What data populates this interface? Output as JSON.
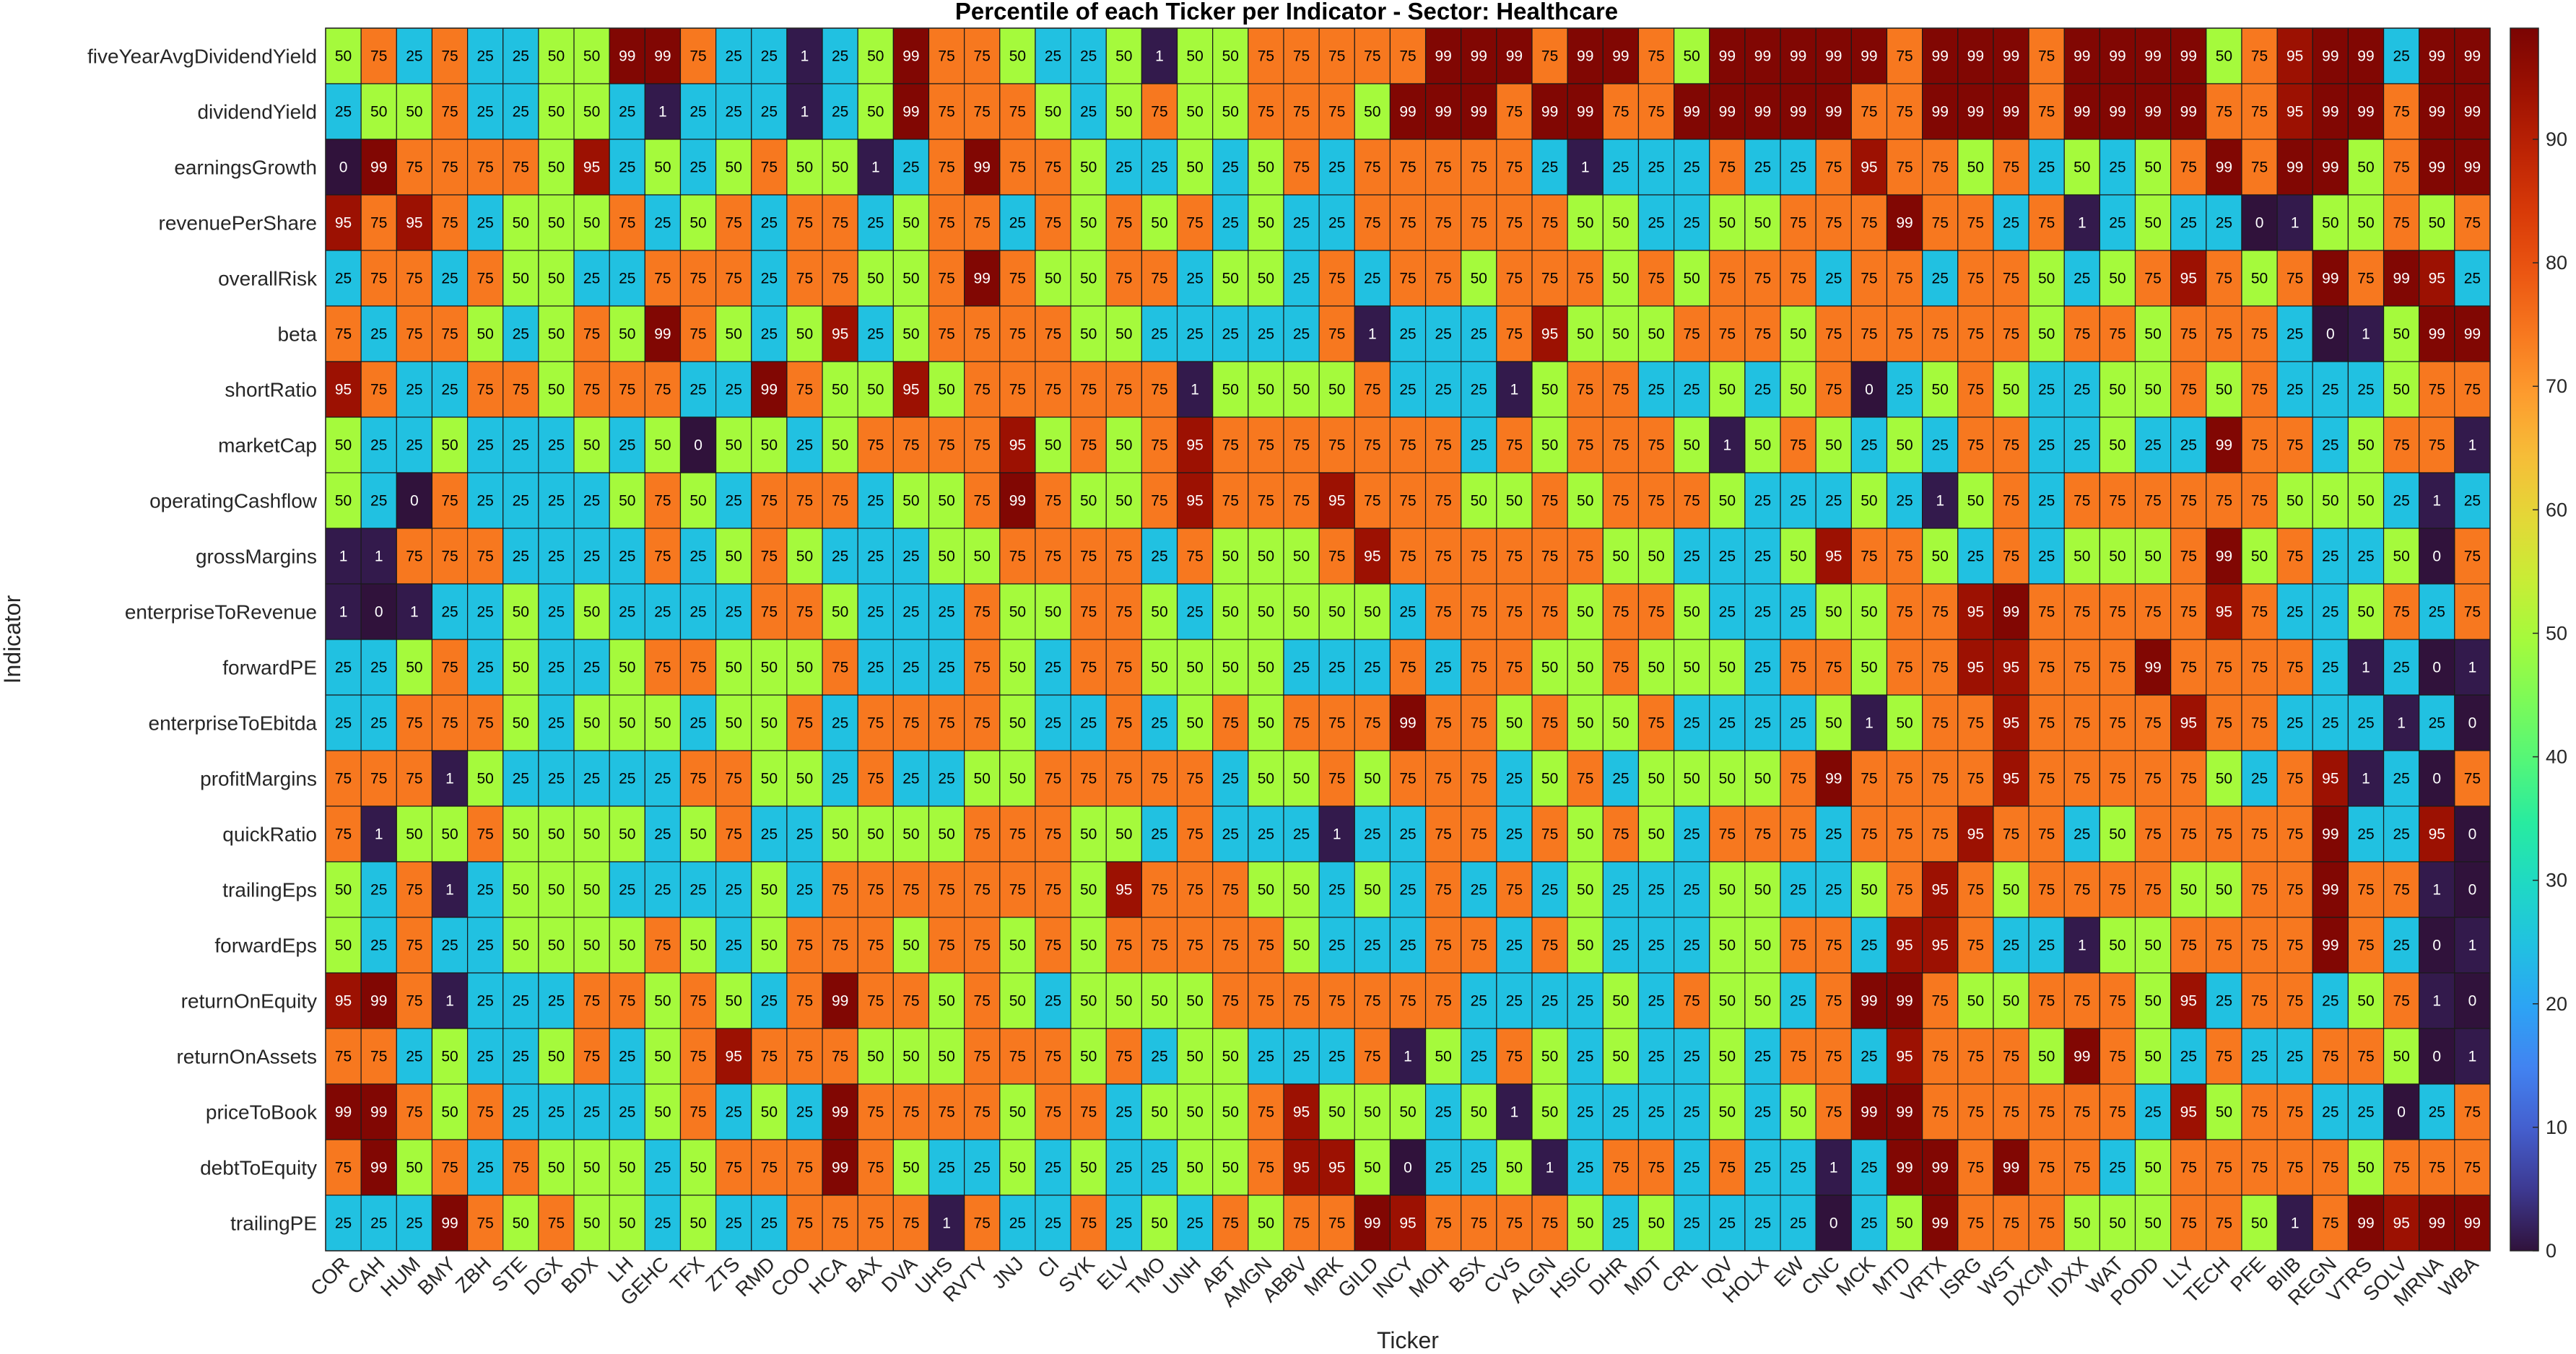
{
  "chart_data": {
    "type": "heatmap",
    "title": "Percentile of each Ticker per Indicator - Sector: Healthcare",
    "xlabel": "Ticker",
    "ylabel": "Indicator",
    "colormap": "turbo",
    "colorbar": {
      "range": [
        0,
        100
      ],
      "ticks": [
        0,
        10,
        20,
        30,
        40,
        50,
        60,
        70,
        80,
        90
      ]
    },
    "x": [
      "COR",
      "CAH",
      "HUM",
      "BMY",
      "ZBH",
      "STE",
      "DGX",
      "BDX",
      "LH",
      "GEHC",
      "TFX",
      "ZTS",
      "RMD",
      "COO",
      "HCA",
      "BAX",
      "DVA",
      "UHS",
      "RVTY",
      "JNJ",
      "CI",
      "SYK",
      "ELV",
      "TMO",
      "UNH",
      "ABT",
      "AMGN",
      "ABBV",
      "MRK",
      "GILD",
      "INCY",
      "MOH",
      "BSX",
      "CVS",
      "ALGN",
      "HSIC",
      "DHR",
      "MDT",
      "CRL",
      "IQV",
      "HOLX",
      "EW",
      "CNC",
      "MCK",
      "MTD",
      "VRTX",
      "ISRG",
      "WST",
      "DXCM",
      "IDXX",
      "WAT",
      "PODD",
      "LLY",
      "TECH",
      "PFE",
      "BIIB",
      "REGN",
      "VTRS",
      "SOLV",
      "MRNA",
      "WBA"
    ],
    "y": [
      "fiveYearAvgDividendYield",
      "dividendYield",
      "earningsGrowth",
      "revenuePerShare",
      "overallRisk",
      "beta",
      "shortRatio",
      "marketCap",
      "operatingCashflow",
      "grossMargins",
      "enterpriseToRevenue",
      "forwardPE",
      "enterpriseToEbitda",
      "profitMargins",
      "quickRatio",
      "trailingEps",
      "forwardEps",
      "returnOnEquity",
      "returnOnAssets",
      "priceToBook",
      "debtToEquity",
      "trailingPE"
    ],
    "values": [
      [
        50,
        75,
        25,
        75,
        25,
        25,
        50,
        50,
        99,
        99,
        75,
        25,
        25,
        1,
        25,
        50,
        99,
        75,
        75,
        50,
        25,
        25,
        50,
        1,
        50,
        50,
        75,
        75,
        75,
        75,
        75,
        99,
        99,
        99,
        75,
        99,
        99,
        75,
        50,
        99,
        99,
        99,
        99,
        99,
        75,
        99,
        99,
        99,
        75,
        99,
        99,
        99,
        99,
        50,
        75,
        95,
        99,
        99,
        25,
        99,
        99
      ],
      [
        25,
        50,
        50,
        75,
        25,
        25,
        50,
        50,
        25,
        1,
        25,
        25,
        25,
        1,
        25,
        50,
        99,
        75,
        75,
        75,
        50,
        25,
        50,
        75,
        50,
        50,
        75,
        75,
        75,
        50,
        99,
        99,
        99,
        75,
        99,
        99,
        75,
        75,
        99,
        99,
        99,
        99,
        99,
        75,
        75,
        99,
        99,
        99,
        75,
        99,
        99,
        99,
        99,
        75,
        75,
        95,
        99,
        99,
        75,
        99,
        99
      ],
      [
        0,
        99,
        75,
        75,
        75,
        75,
        50,
        95,
        25,
        50,
        25,
        50,
        75,
        50,
        50,
        1,
        25,
        75,
        99,
        75,
        75,
        50,
        25,
        25,
        50,
        25,
        50,
        75,
        25,
        75,
        75,
        75,
        75,
        75,
        25,
        1,
        25,
        25,
        25,
        75,
        25,
        25,
        75,
        95,
        75,
        75,
        50,
        75,
        25,
        50,
        25,
        50,
        75,
        99,
        75,
        99,
        99,
        50,
        75,
        99,
        99
      ],
      [
        95,
        75,
        95,
        75,
        25,
        50,
        50,
        50,
        75,
        25,
        50,
        75,
        25,
        75,
        75,
        25,
        50,
        75,
        75,
        25,
        75,
        50,
        75,
        50,
        75,
        25,
        50,
        25,
        25,
        75,
        75,
        75,
        75,
        75,
        75,
        50,
        50,
        25,
        25,
        50,
        50,
        75,
        75,
        75,
        99,
        75,
        75,
        25,
        75,
        1,
        25,
        50,
        25,
        25,
        0,
        1,
        50,
        50,
        75,
        50,
        75
      ],
      [
        25,
        75,
        75,
        25,
        75,
        50,
        50,
        25,
        25,
        75,
        75,
        75,
        25,
        75,
        75,
        50,
        50,
        75,
        99,
        75,
        50,
        50,
        75,
        75,
        25,
        50,
        50,
        25,
        75,
        25,
        75,
        75,
        50,
        75,
        75,
        75,
        50,
        75,
        50,
        75,
        75,
        75,
        25,
        75,
        75,
        25,
        75,
        75,
        50,
        25,
        50,
        75,
        95,
        75,
        50,
        75,
        99,
        75,
        99,
        95,
        25
      ],
      [
        75,
        25,
        75,
        75,
        50,
        25,
        50,
        75,
        50,
        99,
        75,
        50,
        25,
        50,
        95,
        25,
        50,
        75,
        75,
        75,
        75,
        50,
        50,
        25,
        25,
        25,
        25,
        25,
        75,
        1,
        25,
        25,
        25,
        75,
        95,
        50,
        50,
        50,
        75,
        75,
        75,
        50,
        75,
        75,
        75,
        75,
        75,
        75,
        50,
        75,
        75,
        50,
        75,
        75,
        75,
        25,
        0,
        1,
        50,
        99,
        99
      ],
      [
        95,
        75,
        25,
        25,
        75,
        75,
        50,
        75,
        75,
        75,
        25,
        25,
        99,
        75,
        50,
        50,
        95,
        50,
        75,
        75,
        75,
        75,
        75,
        75,
        1,
        50,
        50,
        50,
        50,
        75,
        25,
        25,
        25,
        1,
        50,
        75,
        75,
        25,
        25,
        50,
        25,
        50,
        75,
        0,
        25,
        50,
        75,
        50,
        25,
        25,
        50,
        50,
        75,
        50,
        75,
        25,
        25,
        25,
        50,
        75,
        75
      ],
      [
        50,
        25,
        25,
        50,
        25,
        25,
        25,
        50,
        25,
        50,
        0,
        50,
        50,
        25,
        50,
        75,
        75,
        75,
        75,
        95,
        50,
        75,
        50,
        75,
        95,
        75,
        75,
        75,
        75,
        75,
        75,
        75,
        25,
        75,
        50,
        75,
        75,
        75,
        50,
        1,
        50,
        75,
        50,
        25,
        50,
        25,
        75,
        75,
        25,
        25,
        50,
        25,
        25,
        99,
        75,
        75,
        25,
        50,
        75,
        75,
        1
      ],
      [
        50,
        25,
        0,
        75,
        25,
        25,
        25,
        25,
        50,
        75,
        50,
        25,
        75,
        75,
        75,
        25,
        50,
        50,
        75,
        99,
        75,
        50,
        50,
        75,
        95,
        75,
        75,
        75,
        95,
        75,
        75,
        75,
        50,
        50,
        75,
        50,
        75,
        75,
        75,
        50,
        25,
        25,
        25,
        50,
        25,
        1,
        50,
        75,
        25,
        75,
        75,
        75,
        75,
        75,
        75,
        50,
        50,
        50,
        25,
        1,
        25
      ],
      [
        1,
        1,
        75,
        75,
        75,
        25,
        25,
        25,
        25,
        75,
        25,
        50,
        75,
        50,
        25,
        25,
        25,
        50,
        50,
        75,
        75,
        75,
        75,
        25,
        75,
        50,
        50,
        50,
        75,
        95,
        75,
        75,
        75,
        75,
        75,
        75,
        50,
        50,
        25,
        25,
        25,
        50,
        95,
        75,
        75,
        50,
        25,
        75,
        25,
        50,
        50,
        50,
        75,
        99,
        50,
        75,
        25,
        25,
        50,
        0,
        75
      ],
      [
        1,
        0,
        1,
        25,
        25,
        50,
        25,
        50,
        25,
        25,
        25,
        25,
        75,
        75,
        50,
        25,
        25,
        25,
        75,
        50,
        50,
        75,
        75,
        50,
        25,
        50,
        50,
        50,
        50,
        50,
        25,
        75,
        75,
        75,
        75,
        50,
        75,
        75,
        50,
        25,
        25,
        25,
        50,
        50,
        75,
        75,
        95,
        99,
        75,
        75,
        75,
        75,
        75,
        95,
        75,
        25,
        25,
        50,
        75,
        25,
        75
      ],
      [
        25,
        25,
        50,
        75,
        25,
        50,
        25,
        25,
        50,
        75,
        75,
        50,
        50,
        50,
        75,
        25,
        25,
        25,
        75,
        50,
        25,
        75,
        75,
        50,
        50,
        50,
        50,
        25,
        25,
        25,
        75,
        25,
        75,
        75,
        50,
        50,
        75,
        50,
        50,
        50,
        25,
        75,
        75,
        50,
        75,
        75,
        95,
        95,
        75,
        75,
        75,
        99,
        75,
        75,
        75,
        75,
        25,
        1,
        25,
        0,
        1
      ],
      [
        25,
        25,
        75,
        75,
        75,
        50,
        25,
        50,
        50,
        50,
        25,
        50,
        50,
        75,
        25,
        75,
        75,
        75,
        75,
        50,
        25,
        25,
        75,
        25,
        50,
        75,
        50,
        75,
        75,
        75,
        99,
        75,
        75,
        50,
        75,
        50,
        50,
        75,
        25,
        25,
        25,
        25,
        50,
        1,
        50,
        75,
        75,
        95,
        75,
        75,
        75,
        75,
        95,
        75,
        75,
        25,
        25,
        25,
        1,
        25,
        0
      ],
      [
        75,
        75,
        75,
        1,
        50,
        25,
        25,
        25,
        25,
        25,
        75,
        75,
        50,
        50,
        25,
        75,
        25,
        25,
        50,
        50,
        75,
        75,
        75,
        75,
        75,
        25,
        50,
        50,
        75,
        50,
        75,
        75,
        75,
        25,
        50,
        75,
        25,
        50,
        50,
        50,
        50,
        75,
        99,
        75,
        75,
        75,
        75,
        95,
        75,
        75,
        75,
        75,
        75,
        50,
        25,
        75,
        95,
        1,
        25,
        0,
        75
      ],
      [
        75,
        1,
        50,
        50,
        75,
        50,
        50,
        50,
        50,
        25,
        50,
        75,
        25,
        25,
        50,
        50,
        50,
        50,
        75,
        75,
        75,
        50,
        50,
        25,
        75,
        25,
        25,
        25,
        1,
        25,
        25,
        75,
        75,
        25,
        75,
        50,
        75,
        50,
        25,
        75,
        75,
        75,
        25,
        75,
        75,
        75,
        95,
        75,
        75,
        25,
        50,
        75,
        75,
        75,
        75,
        75,
        99,
        25,
        25,
        95,
        0
      ],
      [
        50,
        25,
        75,
        1,
        25,
        50,
        50,
        50,
        25,
        25,
        25,
        25,
        50,
        25,
        75,
        75,
        75,
        75,
        75,
        75,
        75,
        50,
        95,
        75,
        75,
        75,
        50,
        50,
        25,
        50,
        25,
        75,
        25,
        75,
        25,
        50,
        25,
        25,
        25,
        50,
        50,
        25,
        25,
        50,
        75,
        95,
        75,
        50,
        75,
        75,
        75,
        75,
        50,
        50,
        75,
        75,
        99,
        75,
        75,
        1,
        0
      ],
      [
        50,
        25,
        75,
        25,
        25,
        50,
        50,
        50,
        50,
        75,
        50,
        25,
        50,
        75,
        75,
        75,
        50,
        75,
        75,
        50,
        75,
        50,
        75,
        75,
        75,
        75,
        75,
        50,
        25,
        25,
        25,
        75,
        75,
        25,
        75,
        50,
        25,
        25,
        25,
        50,
        50,
        75,
        75,
        25,
        95,
        95,
        75,
        25,
        25,
        1,
        50,
        50,
        75,
        75,
        75,
        75,
        99,
        75,
        25,
        0,
        1
      ],
      [
        95,
        99,
        75,
        1,
        25,
        25,
        25,
        75,
        75,
        50,
        75,
        50,
        25,
        75,
        99,
        75,
        75,
        50,
        75,
        50,
        25,
        50,
        50,
        50,
        50,
        75,
        75,
        75,
        75,
        75,
        75,
        75,
        25,
        25,
        25,
        25,
        50,
        25,
        75,
        50,
        50,
        25,
        75,
        99,
        99,
        75,
        50,
        50,
        75,
        75,
        75,
        50,
        95,
        25,
        75,
        75,
        25,
        50,
        75,
        1,
        0
      ],
      [
        75,
        75,
        25,
        50,
        25,
        25,
        50,
        75,
        25,
        50,
        75,
        95,
        75,
        75,
        75,
        50,
        50,
        50,
        75,
        75,
        75,
        50,
        75,
        25,
        50,
        50,
        25,
        25,
        25,
        75,
        1,
        50,
        25,
        75,
        50,
        25,
        50,
        25,
        25,
        50,
        25,
        75,
        75,
        25,
        95,
        75,
        75,
        75,
        50,
        99,
        75,
        50,
        25,
        75,
        25,
        25,
        75,
        75,
        50,
        0,
        1
      ],
      [
        99,
        99,
        75,
        50,
        75,
        25,
        25,
        25,
        25,
        50,
        75,
        25,
        50,
        25,
        99,
        75,
        75,
        75,
        75,
        50,
        75,
        75,
        25,
        50,
        50,
        50,
        75,
        95,
        50,
        50,
        50,
        25,
        50,
        1,
        50,
        25,
        25,
        25,
        25,
        50,
        25,
        50,
        75,
        99,
        99,
        75,
        75,
        75,
        75,
        75,
        75,
        25,
        95,
        50,
        75,
        75,
        25,
        25,
        0,
        25,
        75
      ],
      [
        75,
        99,
        50,
        75,
        25,
        75,
        50,
        50,
        50,
        25,
        50,
        75,
        75,
        75,
        99,
        75,
        50,
        25,
        25,
        50,
        25,
        50,
        25,
        25,
        50,
        50,
        75,
        95,
        95,
        50,
        0,
        25,
        25,
        50,
        1,
        25,
        75,
        75,
        25,
        75,
        25,
        25,
        1,
        25,
        99,
        99,
        75,
        99,
        75,
        75,
        25,
        50,
        75,
        75,
        75,
        75,
        75,
        50,
        75,
        75,
        75
      ],
      [
        25,
        25,
        25,
        99,
        75,
        50,
        75,
        50,
        50,
        25,
        50,
        25,
        25,
        75,
        75,
        75,
        75,
        1,
        75,
        25,
        25,
        75,
        25,
        50,
        25,
        75,
        50,
        75,
        75,
        99,
        95,
        75,
        75,
        75,
        75,
        50,
        25,
        50,
        25,
        25,
        25,
        25,
        0,
        25,
        50,
        99,
        75,
        75,
        75,
        50,
        50,
        50,
        75,
        75,
        50,
        1,
        75,
        99,
        95,
        99,
        99
      ]
    ]
  }
}
